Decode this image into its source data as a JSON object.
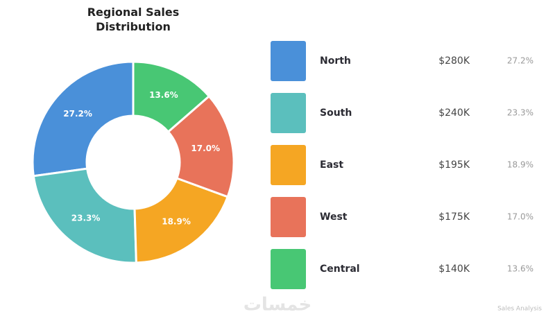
{
  "chart_data": {
    "type": "pie",
    "title": "Regional Sales Distribution",
    "categories": [
      "North",
      "South",
      "East",
      "West",
      "Central"
    ],
    "values": [
      280000,
      240000,
      195000,
      175000,
      140000
    ],
    "value_labels": [
      "$280K",
      "$240K",
      "$195K",
      "$175K",
      "$140K"
    ],
    "shares": [
      27.2,
      23.3,
      18.9,
      17.0,
      13.6
    ],
    "share_labels": [
      "27.2%",
      "23.3%",
      "18.9%",
      "17.0%",
      "13.6%"
    ],
    "colors": [
      "#4a90d9",
      "#5bbfbd",
      "#f5a623",
      "#e8735a",
      "#48c774"
    ],
    "direction": "counterclockwise",
    "footer": "Sales Analysis",
    "watermark": "خمسات"
  }
}
